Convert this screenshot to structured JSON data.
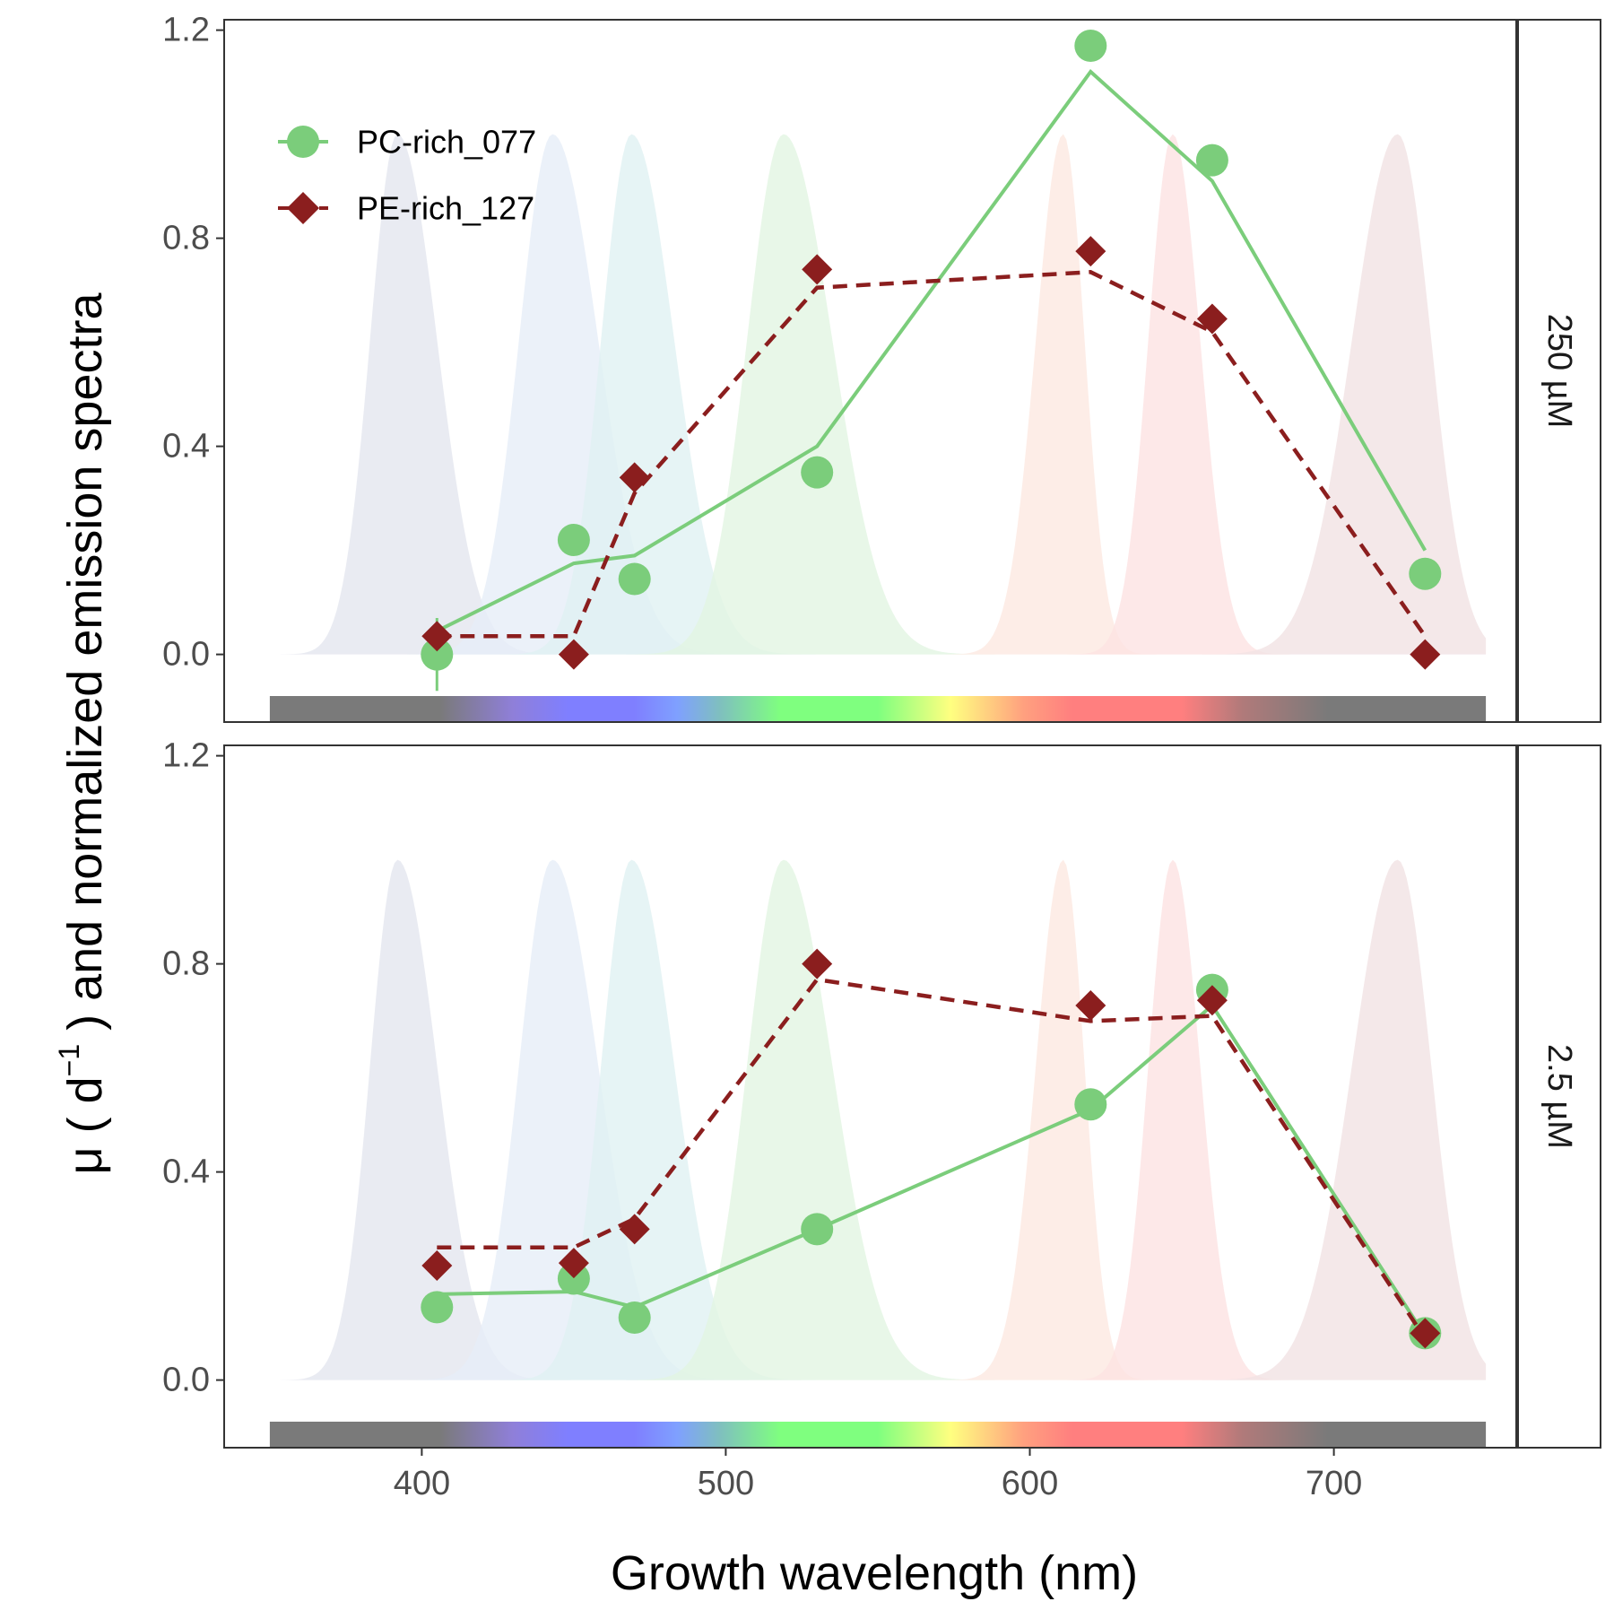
{
  "chart_data": {
    "type": "line",
    "xlabel": "Growth wavelength (nm)",
    "ylabel": {
      "prefix": "μ  ( d",
      "sup": "−1",
      "suffix": " ) and normalized emission spectra"
    },
    "xlim": [
      335,
      760
    ],
    "ylim": [
      -0.13,
      1.22
    ],
    "x_ticks": [
      400,
      500,
      600,
      700
    ],
    "y_ticks": [
      0.0,
      0.4,
      0.8,
      1.2
    ],
    "y_tick_labels": [
      "0.0",
      "0.4",
      "0.8",
      "1.2"
    ],
    "grid": false,
    "legend_position": "top-left",
    "series_styles": [
      {
        "name": "PC-rich_077",
        "color": "#7bcd7b",
        "marker": "circle",
        "line": "solid"
      },
      {
        "name": "PE-rich_127",
        "color": "#8b1e1e",
        "marker": "diamond",
        "line": "dashed"
      }
    ],
    "emission_spectra": [
      {
        "peak": 392,
        "sl": 9,
        "sr": 13,
        "color": "#e3e6ef"
      },
      {
        "peak": 443,
        "sl": 11,
        "sr": 15,
        "color": "#e6eef8"
      },
      {
        "peak": 469,
        "sl": 10,
        "sr": 14,
        "color": "#e0f1f2"
      },
      {
        "peak": 519,
        "sl": 12,
        "sr": 16,
        "color": "#e2f5e2"
      },
      {
        "peak": 611,
        "sl": 9,
        "sr": 7,
        "color": "#fde8e1"
      },
      {
        "peak": 647,
        "sl": 8,
        "sr": 9,
        "color": "#fde2e2"
      },
      {
        "peak": 721,
        "sl": 15,
        "sr": 11,
        "color": "#f1e2e3"
      }
    ],
    "spectrum_bar": {
      "y_range": [
        -0.13,
        -0.08
      ],
      "x_range": [
        350,
        750
      ]
    },
    "panels": [
      {
        "strip_label": "250 µM",
        "series": [
          {
            "name": "PC-rich_077",
            "x": [
              405,
              450,
              470,
              530,
              620,
              660,
              730
            ],
            "points": [
              0.0,
              0.22,
              0.145,
              0.35,
              1.17,
              0.95,
              0.155
            ],
            "fit": [
              0.045,
              0.175,
              0.19,
              0.4,
              1.12,
              0.91,
              0.2
            ],
            "error_bar": {
              "x": 405,
              "ymin": -0.07,
              "ymax": 0.07
            }
          },
          {
            "name": "PE-rich_127",
            "x": [
              405,
              450,
              470,
              530,
              620,
              660,
              730
            ],
            "points": [
              0.035,
              0.0,
              0.34,
              0.74,
              0.775,
              0.645,
              0.0
            ],
            "fit": [
              0.035,
              0.035,
              0.31,
              0.705,
              0.735,
              0.62,
              0.035
            ]
          }
        ]
      },
      {
        "strip_label": "2.5 µM",
        "series": [
          {
            "name": "PC-rich_077",
            "x": [
              405,
              450,
              470,
              530,
              620,
              660,
              730
            ],
            "points": [
              0.14,
              0.195,
              0.12,
              0.29,
              0.53,
              0.75,
              0.09
            ],
            "fit": [
              0.165,
              0.17,
              0.14,
              0.29,
              0.52,
              0.72,
              0.085
            ]
          },
          {
            "name": "PE-rich_127",
            "x": [
              405,
              450,
              470,
              530,
              620,
              660,
              730
            ],
            "points": [
              0.22,
              0.225,
              0.29,
              0.8,
              0.72,
              0.73,
              0.09
            ],
            "fit": [
              0.255,
              0.255,
              0.31,
              0.77,
              0.69,
              0.7,
              0.08
            ]
          }
        ]
      }
    ]
  }
}
